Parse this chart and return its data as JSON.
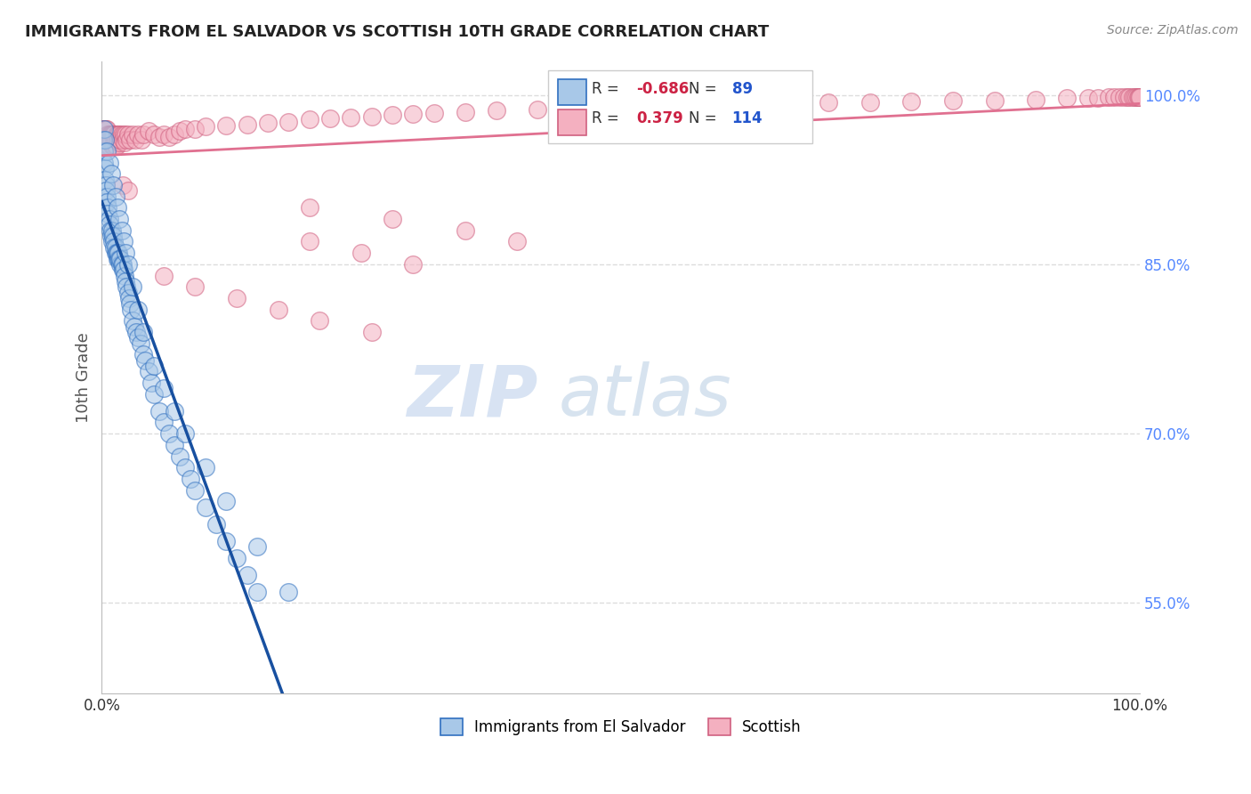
{
  "title": "IMMIGRANTS FROM EL SALVADOR VS SCOTTISH 10TH GRADE CORRELATION CHART",
  "source": "Source: ZipAtlas.com",
  "ylabel": "10th Grade",
  "legend_blue_label": "Immigrants from El Salvador",
  "legend_pink_label": "Scottish",
  "R_blue": -0.686,
  "N_blue": 89,
  "R_pink": 0.379,
  "N_pink": 114,
  "blue_color": "#a8c8e8",
  "pink_color": "#f4b0c0",
  "blue_edge_color": "#3070c0",
  "pink_edge_color": "#d06080",
  "blue_line_color": "#1850a0",
  "pink_line_color": "#e07090",
  "watermark_zip": "ZIP",
  "watermark_atlas": "atlas",
  "ytick_vals": [
    0.55,
    0.7,
    0.85,
    1.0
  ],
  "ytick_labels": [
    "55.0%",
    "70.0%",
    "85.0%",
    "100.0%"
  ],
  "blue_x": [
    0.001,
    0.002,
    0.002,
    0.003,
    0.003,
    0.004,
    0.004,
    0.005,
    0.005,
    0.006,
    0.006,
    0.007,
    0.007,
    0.008,
    0.009,
    0.01,
    0.01,
    0.011,
    0.012,
    0.012,
    0.013,
    0.013,
    0.014,
    0.015,
    0.015,
    0.016,
    0.016,
    0.017,
    0.018,
    0.018,
    0.019,
    0.02,
    0.02,
    0.021,
    0.022,
    0.023,
    0.024,
    0.025,
    0.026,
    0.027,
    0.028,
    0.03,
    0.031,
    0.033,
    0.035,
    0.037,
    0.04,
    0.042,
    0.045,
    0.048,
    0.05,
    0.055,
    0.06,
    0.065,
    0.07,
    0.075,
    0.08,
    0.085,
    0.09,
    0.1,
    0.11,
    0.12,
    0.13,
    0.14,
    0.15,
    0.002,
    0.003,
    0.005,
    0.007,
    0.009,
    0.011,
    0.013,
    0.015,
    0.017,
    0.019,
    0.021,
    0.023,
    0.025,
    0.03,
    0.035,
    0.04,
    0.05,
    0.06,
    0.07,
    0.08,
    0.1,
    0.12,
    0.15,
    0.18
  ],
  "blue_y": [
    0.96,
    0.95,
    0.94,
    0.935,
    0.925,
    0.92,
    0.915,
    0.91,
    0.905,
    0.9,
    0.895,
    0.89,
    0.885,
    0.88,
    0.875,
    0.87,
    0.88,
    0.875,
    0.87,
    0.865,
    0.86,
    0.865,
    0.86,
    0.855,
    0.86,
    0.855,
    0.86,
    0.855,
    0.85,
    0.855,
    0.85,
    0.845,
    0.85,
    0.845,
    0.84,
    0.835,
    0.83,
    0.825,
    0.82,
    0.815,
    0.81,
    0.8,
    0.795,
    0.79,
    0.785,
    0.78,
    0.77,
    0.765,
    0.755,
    0.745,
    0.735,
    0.72,
    0.71,
    0.7,
    0.69,
    0.68,
    0.67,
    0.66,
    0.65,
    0.635,
    0.62,
    0.605,
    0.59,
    0.575,
    0.56,
    0.97,
    0.96,
    0.95,
    0.94,
    0.93,
    0.92,
    0.91,
    0.9,
    0.89,
    0.88,
    0.87,
    0.86,
    0.85,
    0.83,
    0.81,
    0.79,
    0.76,
    0.74,
    0.72,
    0.7,
    0.67,
    0.64,
    0.6,
    0.56
  ],
  "pink_x": [
    0.001,
    0.001,
    0.002,
    0.002,
    0.003,
    0.003,
    0.004,
    0.004,
    0.005,
    0.005,
    0.006,
    0.006,
    0.007,
    0.007,
    0.008,
    0.008,
    0.009,
    0.009,
    0.01,
    0.01,
    0.011,
    0.011,
    0.012,
    0.012,
    0.013,
    0.013,
    0.014,
    0.014,
    0.015,
    0.015,
    0.016,
    0.016,
    0.017,
    0.017,
    0.018,
    0.019,
    0.02,
    0.021,
    0.022,
    0.023,
    0.024,
    0.025,
    0.027,
    0.03,
    0.032,
    0.035,
    0.038,
    0.04,
    0.045,
    0.05,
    0.055,
    0.06,
    0.065,
    0.07,
    0.075,
    0.08,
    0.09,
    0.1,
    0.12,
    0.14,
    0.16,
    0.18,
    0.2,
    0.22,
    0.24,
    0.26,
    0.28,
    0.3,
    0.32,
    0.35,
    0.38,
    0.42,
    0.46,
    0.5,
    0.54,
    0.58,
    0.62,
    0.66,
    0.7,
    0.74,
    0.78,
    0.82,
    0.86,
    0.9,
    0.93,
    0.95,
    0.96,
    0.97,
    0.975,
    0.98,
    0.985,
    0.988,
    0.99,
    0.993,
    0.995,
    0.997,
    0.998,
    0.999,
    1.0,
    0.2,
    0.25,
    0.3,
    0.06,
    0.09,
    0.13,
    0.17,
    0.21,
    0.26,
    0.2,
    0.28,
    0.35,
    0.4,
    0.02,
    0.025
  ],
  "pink_y": [
    0.97,
    0.96,
    0.97,
    0.96,
    0.97,
    0.96,
    0.97,
    0.96,
    0.97,
    0.96,
    0.965,
    0.955,
    0.965,
    0.955,
    0.965,
    0.96,
    0.965,
    0.96,
    0.965,
    0.955,
    0.965,
    0.955,
    0.965,
    0.955,
    0.96,
    0.955,
    0.965,
    0.955,
    0.965,
    0.96,
    0.965,
    0.96,
    0.965,
    0.958,
    0.96,
    0.965,
    0.96,
    0.965,
    0.958,
    0.965,
    0.96,
    0.965,
    0.96,
    0.965,
    0.96,
    0.965,
    0.96,
    0.965,
    0.968,
    0.965,
    0.963,
    0.965,
    0.963,
    0.965,
    0.968,
    0.97,
    0.97,
    0.972,
    0.973,
    0.974,
    0.975,
    0.976,
    0.978,
    0.979,
    0.98,
    0.981,
    0.982,
    0.983,
    0.984,
    0.985,
    0.986,
    0.987,
    0.988,
    0.989,
    0.99,
    0.99,
    0.991,
    0.992,
    0.993,
    0.993,
    0.994,
    0.995,
    0.995,
    0.996,
    0.997,
    0.997,
    0.997,
    0.998,
    0.998,
    0.998,
    0.998,
    0.998,
    0.998,
    0.998,
    0.998,
    0.998,
    0.998,
    0.998,
    0.998,
    0.87,
    0.86,
    0.85,
    0.84,
    0.83,
    0.82,
    0.81,
    0.8,
    0.79,
    0.9,
    0.89,
    0.88,
    0.87,
    0.92,
    0.915
  ]
}
